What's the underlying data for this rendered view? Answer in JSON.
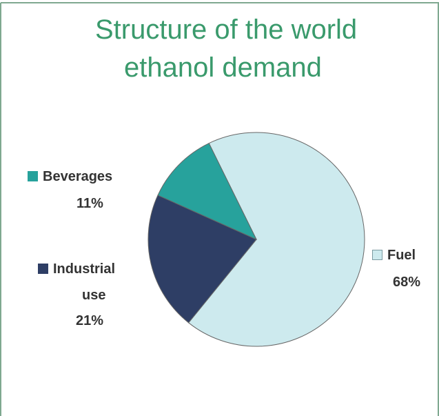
{
  "chart_data": {
    "type": "pie",
    "title_lines": [
      "Structure of the world",
      "ethanol demand"
    ],
    "slices": [
      {
        "name": "Fuel",
        "value": 68,
        "label": "68%",
        "color": "#cdeaee"
      },
      {
        "name": "Industrial use",
        "name_lines": [
          "Industrial",
          "use"
        ],
        "value": 21,
        "label": "21%",
        "color": "#2e3e65"
      },
      {
        "name": "Beverages",
        "value": 11,
        "label": "11%",
        "color": "#27a29c"
      }
    ],
    "colors": {
      "title": "#3a9a6c",
      "frame": "#7fa890",
      "outline": "#666666",
      "label_text": "#333333"
    }
  }
}
